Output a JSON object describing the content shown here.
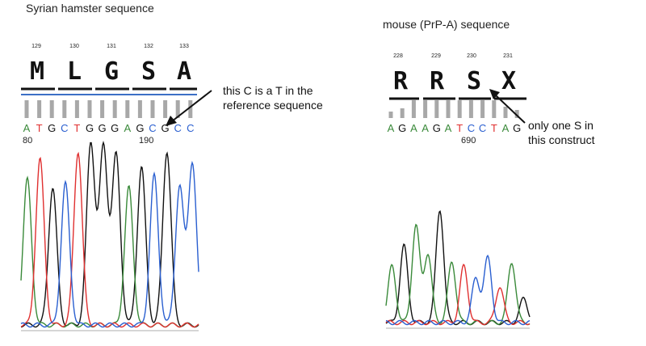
{
  "left_panel": {
    "title": "Syrian hamster sequence",
    "codon_numbers": [
      "129",
      "130",
      "131",
      "132",
      "133"
    ],
    "amino_acids": [
      "M",
      "L",
      "G",
      "S",
      "A"
    ],
    "bases": [
      "A",
      "T",
      "G",
      "C",
      "T",
      "G",
      "G",
      "G",
      "A",
      "G",
      "C",
      "G",
      "C",
      "C"
    ],
    "position_labels": [
      "80",
      "190"
    ],
    "annotation": "this C is a T in the\nreference sequence"
  },
  "right_panel": {
    "title": "mouse (PrP-A) sequence",
    "codon_numbers": [
      "228",
      "229",
      "230",
      "231"
    ],
    "amino_acids": [
      "R",
      "R",
      "S",
      "X"
    ],
    "bases": [
      "A",
      "G",
      "A",
      "A",
      "G",
      "A",
      "T",
      "C",
      "C",
      "T",
      "A",
      "G"
    ],
    "position_labels": [
      "690"
    ],
    "annotation": "only one S in\nthis construct"
  },
  "colors": {
    "A": "#3a8a3a",
    "T": "#e03030",
    "G": "#111111",
    "C": "#2a5fd0",
    "quality_bar": "#a8a8a8"
  }
}
